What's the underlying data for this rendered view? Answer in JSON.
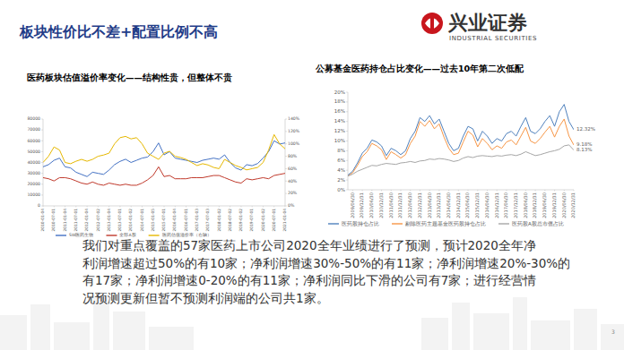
{
  "page": {
    "title": "板块性价比不差+配置比例不高",
    "logo": {
      "name": "兴业证券",
      "english": "INDUSTRIAL SECURITIES"
    },
    "body": [
      "我们对重点覆盖的57家医药上市公司2020全年业绩进行了预测，预计2020全年净",
      "利润增速超过50%的有10家；净利润增速30%-50%的有11家；净利润增速20%-30%的",
      "有17家；净利润增速0-20%的有11家；净利润同比下滑的公司有7家；进行经营情",
      "况预测更新但暂不预测利润端的公司共1家。"
    ],
    "page_number": "3"
  },
  "chart_data": [
    {
      "type": "line",
      "title": "医药板块估值溢价率变化——结构性贵，但整体不贵",
      "categories": [
        "2010-01-04",
        null,
        "2010-07-01",
        null,
        "2011-01-04",
        null,
        "2011-07-01",
        null,
        "2012-01-04",
        null,
        "2012-07-02",
        null,
        "2013-01-04",
        null,
        "2013-07-01",
        null,
        "2014-01-02",
        null,
        "2014-07-01",
        null,
        "2015-01-05",
        null,
        "2015-07-01",
        null,
        "2016-01-04",
        null,
        "2016-07-01",
        null,
        "2017-01-03",
        null,
        "2017-07-03",
        null,
        "2018-01-02",
        null,
        "2018-07-02",
        null,
        "2019-01-02",
        null,
        "2019-07-01",
        null,
        "2020-01-02",
        null,
        "2020-07-01",
        null,
        "2021-01-04"
      ],
      "series": [
        {
          "name": "SW医药生物",
          "color": "#4472c4",
          "values": [
            36000,
            38000,
            42000,
            44000,
            36000,
            35000,
            31000,
            29000,
            27000,
            31000,
            30000,
            29000,
            33000,
            38000,
            41000,
            43000,
            40000,
            42000,
            44000,
            45000,
            50000,
            58000,
            47000,
            50000,
            44000,
            43000,
            42000,
            41000,
            40000,
            42000,
            43000,
            44000,
            43000,
            47000,
            40000,
            35000,
            33000,
            38000,
            37000,
            39000,
            44000,
            50000,
            60000,
            57000,
            58000
          ]
        },
        {
          "name": "全部A股",
          "color": "#c0392b",
          "values": [
            26000,
            25000,
            23000,
            26000,
            26000,
            25000,
            23000,
            21000,
            20000,
            22000,
            20000,
            19000,
            21000,
            20000,
            19000,
            20000,
            19000,
            19000,
            21000,
            24000,
            28000,
            36000,
            27000,
            28000,
            25000,
            25000,
            25000,
            26000,
            26000,
            26000,
            27000,
            28000,
            28000,
            26000,
            24000,
            22000,
            21000,
            25000,
            24000,
            25000,
            26000,
            25000,
            28000,
            29000,
            30000
          ]
        },
        {
          "name": "医药估值溢价率（右轴）",
          "color": "#e6b800",
          "axis": "y2",
          "values": [
            70,
            80,
            95,
            90,
            70,
            68,
            72,
            75,
            72,
            75,
            80,
            82,
            85,
            100,
            110,
            112,
            108,
            110,
            100,
            85,
            80,
            75,
            85,
            88,
            80,
            78,
            75,
            70,
            65,
            68,
            66,
            62,
            60,
            75,
            70,
            65,
            62,
            58,
            60,
            62,
            70,
            90,
            115,
            100,
            92
          ]
        }
      ],
      "ylim": [
        0,
        80000
      ],
      "yticks": [
        0,
        10000,
        20000,
        30000,
        40000,
        50000,
        60000,
        70000,
        80000
      ],
      "y2lim": [
        0,
        140
      ],
      "y2ticks": [
        {
          "value": 0,
          "label": "0%"
        },
        {
          "value": 20,
          "label": "20%"
        },
        {
          "value": 40,
          "label": "40%"
        },
        {
          "value": 60,
          "label": "60%"
        },
        {
          "value": 80,
          "label": "80%"
        },
        {
          "value": 100,
          "label": "100%"
        },
        {
          "value": 120,
          "label": "120%"
        },
        {
          "value": 140,
          "label": "140%"
        }
      ],
      "grid": false,
      "legend": "bottom"
    },
    {
      "type": "line",
      "title": "公募基金医药持仓占比变化——过去10年第二次低配",
      "categories": [
        null,
        "2009/06/30",
        null,
        "2009/12/31",
        null,
        "2010/06/30",
        null,
        "2010/12/31",
        null,
        "2011/06/30",
        null,
        "2011/12/31",
        null,
        "2012/06/30",
        null,
        "2012/12/31",
        null,
        "2013/06/30",
        null,
        "2013/12/31",
        null,
        "2014/06/30",
        null,
        "2014/12/31",
        null,
        "2015/06/30",
        null,
        "2015/12/31",
        null,
        "2016/06/30",
        null,
        "2016/12/31",
        null,
        "2017/06/30",
        null,
        "2017/12/31",
        null,
        "2018/06/30",
        null,
        "2018/12/31",
        null,
        "2019/06/30",
        null,
        "2019/12/31",
        null,
        "2020/06/30",
        null,
        "2020/12/31"
      ],
      "series": [
        {
          "name": "医药股持仓占比",
          "color": "#4f81bd",
          "values": [
            3.0,
            3.8,
            5.5,
            7.5,
            8.5,
            10.2,
            9.8,
            9.0,
            7.0,
            8.5,
            8.0,
            7.2,
            8.0,
            10.5,
            12.0,
            14.8,
            14.0,
            15.2,
            13.5,
            14.5,
            12.0,
            9.5,
            8.0,
            8.5,
            11.0,
            13.0,
            12.5,
            10.0,
            12.0,
            11.0,
            9.5,
            10.5,
            10.0,
            11.5,
            12.0,
            11.0,
            13.0,
            14.8,
            12.0,
            11.5,
            12.5,
            14.0,
            15.2,
            13.0,
            16.0,
            17.5,
            14.0,
            12.32
          ],
          "value_labels": [
            null,
            null,
            null,
            null,
            null,
            null,
            null,
            null,
            null,
            null,
            null,
            null,
            null,
            null,
            null,
            null,
            null,
            null,
            null,
            null,
            null,
            null,
            null,
            null,
            null,
            null,
            null,
            null,
            null,
            null,
            null,
            null,
            null,
            null,
            null,
            null,
            null,
            null,
            null,
            null,
            null,
            null,
            null,
            null,
            null,
            null,
            null,
            "12.32%"
          ]
        },
        {
          "name": "剔除医药主题基金医药股持仓占比",
          "color": "#f79646",
          "values": [
            2.8,
            3.5,
            5.0,
            6.8,
            7.8,
            9.5,
            9.0,
            8.2,
            6.2,
            7.8,
            7.2,
            6.5,
            7.2,
            9.5,
            11.0,
            14.0,
            13.0,
            14.2,
            12.5,
            13.5,
            10.8,
            8.5,
            7.2,
            7.5,
            9.8,
            12.0,
            11.2,
            8.8,
            10.5,
            9.5,
            8.2,
            9.0,
            8.5,
            9.8,
            10.2,
            9.2,
            11.0,
            12.8,
            10.0,
            9.5,
            10.5,
            11.8,
            13.0,
            10.8,
            13.0,
            14.5,
            11.0,
            9.18
          ],
          "value_labels": [
            null,
            null,
            null,
            null,
            null,
            null,
            null,
            null,
            null,
            null,
            null,
            null,
            null,
            null,
            null,
            null,
            null,
            null,
            null,
            null,
            null,
            null,
            null,
            null,
            null,
            null,
            null,
            null,
            null,
            null,
            null,
            null,
            null,
            null,
            null,
            null,
            null,
            null,
            null,
            null,
            null,
            null,
            null,
            null,
            null,
            null,
            null,
            "9.18%"
          ]
        },
        {
          "name": "医药股A股总市值占比",
          "color": "#a6a6a6",
          "values": [
            2.8,
            3.2,
            3.8,
            4.2,
            4.6,
            5.0,
            4.9,
            5.2,
            5.4,
            5.3,
            5.2,
            5.5,
            5.6,
            5.8,
            5.6,
            5.9,
            6.0,
            6.3,
            6.2,
            6.4,
            6.3,
            6.1,
            5.8,
            6.0,
            6.5,
            6.8,
            6.6,
            6.9,
            7.0,
            6.9,
            6.8,
            7.0,
            6.9,
            7.1,
            7.2,
            7.0,
            7.3,
            7.8,
            7.4,
            7.0,
            7.2,
            7.5,
            7.8,
            8.0,
            8.3,
            9.0,
            9.2,
            8.13
          ],
          "value_labels": [
            null,
            null,
            null,
            null,
            null,
            null,
            null,
            null,
            null,
            null,
            null,
            null,
            null,
            null,
            null,
            null,
            null,
            null,
            null,
            null,
            null,
            null,
            null,
            null,
            null,
            null,
            null,
            null,
            null,
            null,
            null,
            null,
            null,
            null,
            null,
            null,
            null,
            null,
            null,
            null,
            null,
            null,
            null,
            null,
            null,
            null,
            null,
            "8.13%"
          ]
        }
      ],
      "ylim": [
        0,
        20
      ],
      "yticks": [
        {
          "value": 0,
          "label": "0%"
        },
        {
          "value": 2,
          "label": "2%"
        },
        {
          "value": 4,
          "label": "4%"
        },
        {
          "value": 6,
          "label": "6%"
        },
        {
          "value": 8,
          "label": "8%"
        },
        {
          "value": 10,
          "label": "10%"
        },
        {
          "value": 12,
          "label": "12%"
        },
        {
          "value": 14,
          "label": "14%"
        },
        {
          "value": 16,
          "label": "16%"
        },
        {
          "value": 18,
          "label": "18%"
        },
        {
          "value": 20,
          "label": "20%"
        }
      ],
      "grid": false,
      "legend": "bottom",
      "data_labels": true
    }
  ]
}
